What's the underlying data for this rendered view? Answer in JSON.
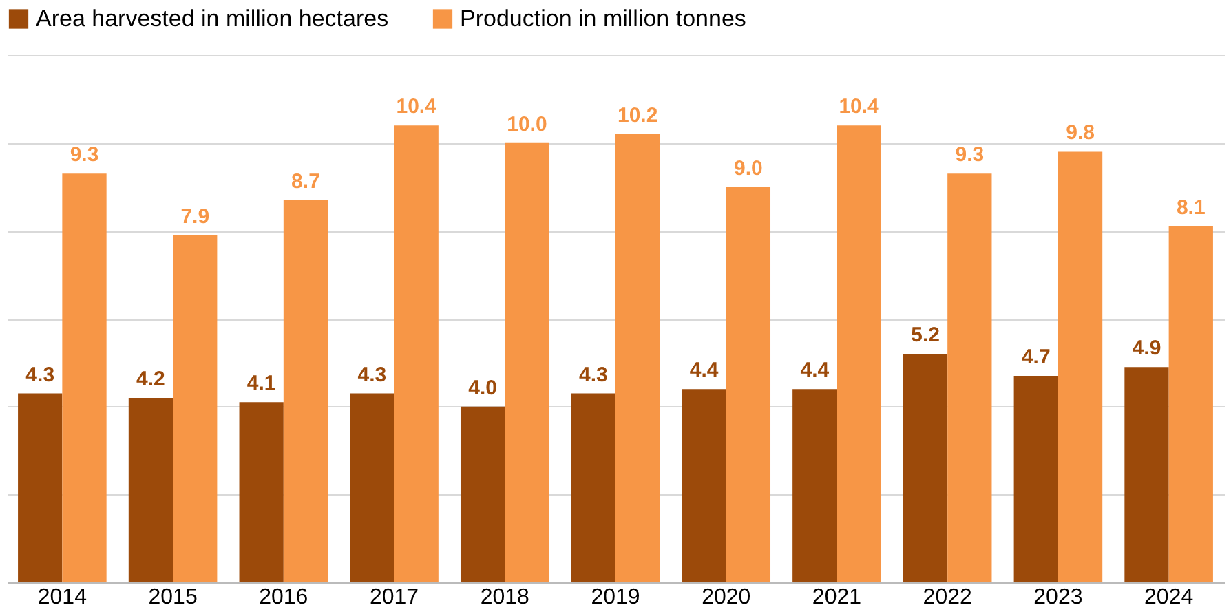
{
  "chart_data": {
    "type": "bar",
    "categories": [
      "2014",
      "2015",
      "2016",
      "2017",
      "2018",
      "2019",
      "2020",
      "2021",
      "2022",
      "2023",
      "2024"
    ],
    "series": [
      {
        "name": "Area harvested in million hectares",
        "color": "#9c4a0a",
        "values": [
          4.3,
          4.2,
          4.1,
          4.3,
          4.0,
          4.3,
          4.4,
          4.4,
          5.2,
          4.7,
          4.9
        ],
        "value_labels": [
          "4.3",
          "4.2",
          "4.1",
          "4.3",
          "4.0",
          "4.3",
          "4.4",
          "4.4",
          "5.2",
          "4.7",
          "4.9"
        ]
      },
      {
        "name": "Production in million tonnes",
        "color": "#f79646",
        "values": [
          9.3,
          7.9,
          8.7,
          10.4,
          10.0,
          10.2,
          9.0,
          10.4,
          9.3,
          9.8,
          8.1
        ],
        "value_labels": [
          "9.3",
          "7.9",
          "8.7",
          "10.4",
          "10.0",
          "10.2",
          "9.0",
          "10.4",
          "9.3",
          "9.8",
          "8.1"
        ]
      }
    ],
    "ylim": [
      0,
      12
    ],
    "yticks": [
      {
        "value": 0,
        "label": null
      },
      {
        "value": 2,
        "label": null
      },
      {
        "value": 4,
        "label": null
      },
      {
        "value": 6,
        "label": null
      },
      {
        "value": 8,
        "label": null
      },
      {
        "value": 10,
        "label": null
      },
      {
        "value": 12,
        "label": null
      }
    ],
    "tick_labels": "x",
    "grid": "y",
    "legend": "top"
  }
}
